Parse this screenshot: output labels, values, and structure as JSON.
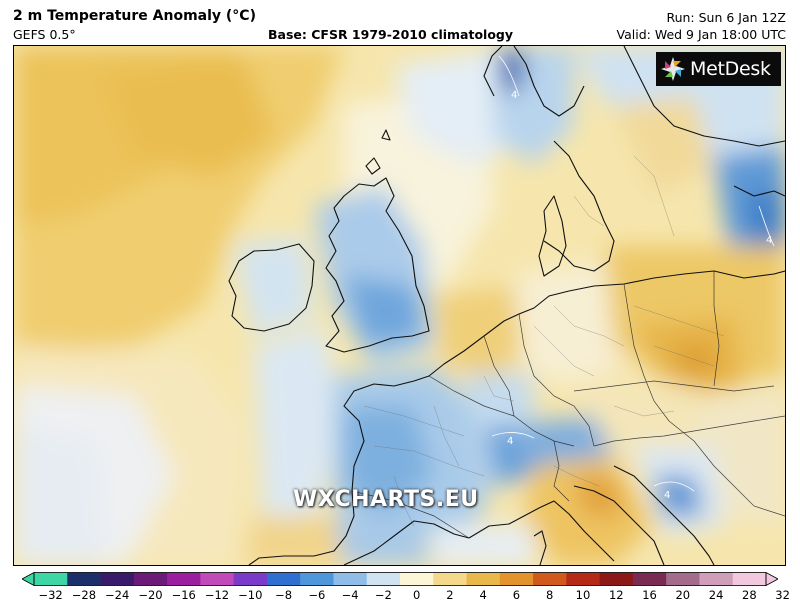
{
  "header": {
    "title": "2 m Temperature Anomaly (°C)",
    "model": "GEFS 0.5°",
    "base": "Base: CFSR 1979-2010 climatology",
    "run": "Run: Sun 6 Jan 12Z",
    "valid": "Valid: Wed 9 Jan 18:00 UTC"
  },
  "logo": {
    "text": "MetDesk",
    "icon": "metdesk-logo-icon"
  },
  "watermark": "WXCHARTS.EU",
  "colorbar": {
    "labels": [
      "−32",
      "−28",
      "−24",
      "−20",
      "−16",
      "−12",
      "−10",
      "−8",
      "−6",
      "−4",
      "−2",
      "0",
      "2",
      "4",
      "6",
      "8",
      "10",
      "12",
      "16",
      "20",
      "24",
      "28",
      "32"
    ],
    "colors": [
      "#3fd6a6",
      "#1c2f6b",
      "#3a1a6a",
      "#6b1a7a",
      "#9b1e9e",
      "#c04ab8",
      "#7a3cc8",
      "#2e6fd0",
      "#4f97db",
      "#8fbde8",
      "#cfe3f3",
      "#fdf6d6",
      "#f4d98c",
      "#e9b84a",
      "#e3932c",
      "#cf5a1c",
      "#b42a16",
      "#8c1818",
      "#7a2b54",
      "#a46c8c",
      "#cf9fba",
      "#f1c8de"
    ]
  },
  "map": {
    "region": "Western and Central Europe",
    "legend_min": -32,
    "legend_max": 32,
    "units": "°C",
    "contour_labels": [
      "4",
      "4",
      "4",
      "4"
    ]
  }
}
